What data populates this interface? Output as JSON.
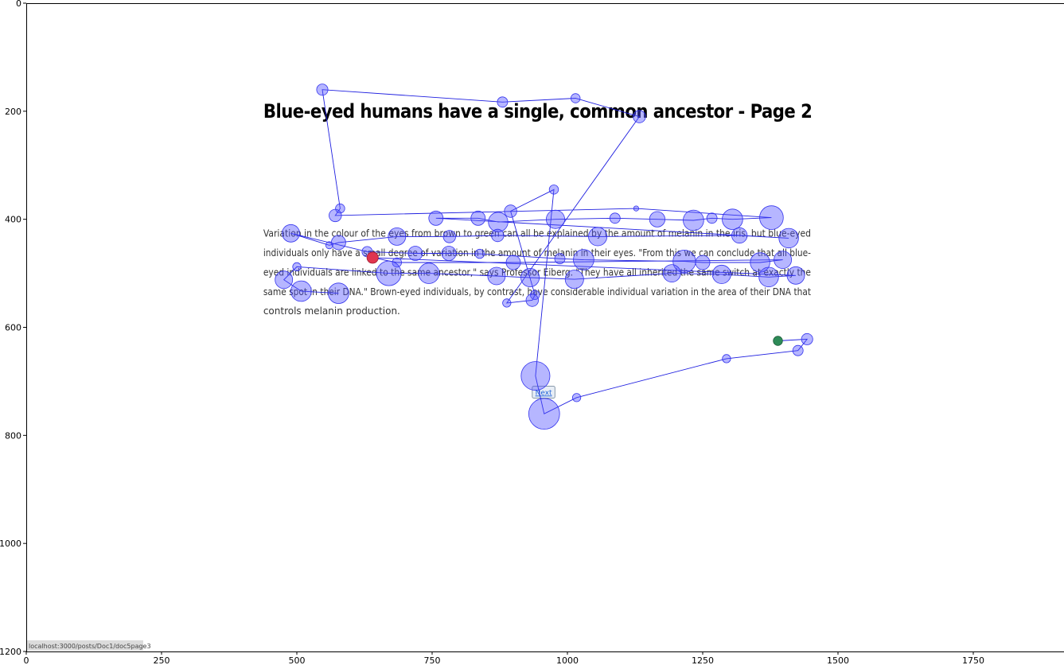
{
  "chart_data": {
    "type": "scatter",
    "title": "",
    "xlabel": "",
    "ylabel": "",
    "xlim": [
      0,
      1900
    ],
    "ylim": [
      1200,
      0
    ],
    "x_ticks": [
      0,
      250,
      500,
      750,
      1000,
      1250,
      1500,
      1750
    ],
    "y_ticks": [
      0,
      200,
      400,
      600,
      800,
      1000,
      1200
    ],
    "x_tick_labels": [
      "0",
      "250",
      "500",
      "750",
      "1000",
      "1250",
      "1500",
      "1750"
    ],
    "y_tick_labels": [
      "0",
      "200",
      "400",
      "600",
      "800",
      "1000",
      "1200"
    ],
    "page": {
      "title": "Blue-eyed humans have a single, common ancestor - Page 2",
      "paragraph_lines": [
        "Variation in the colour of the eyes from brown to green can all be explained by the amount of melanin in the iris, but blue-eyed",
        "individuals only have a small degree of variation in the amount of melanin in their eyes. \"From this we can conclude that all blue-",
        "eyed individuals are linked to the same ancestor,\" says Professor Eiberg. \"They have all inherited the same switch at exactly the",
        "same spot in their DNA.\" Brown-eyed individuals, by contrast, have considerable individual variation in the area of their DNA that",
        "controls melanin production."
      ],
      "next_label": "Next",
      "status_url": "localhost:3000/posts/Doc1/doc5page3"
    },
    "fixation_style": {
      "fixation_color": "#5050ff",
      "start_color": "#2e8b57",
      "end_color": "#e0354f"
    },
    "series": [
      {
        "name": "fixations",
        "points": [
          [
            1389,
            625,
            9
          ],
          [
            1443,
            622,
            11
          ],
          [
            1426,
            643,
            10
          ],
          [
            1294,
            658,
            8
          ],
          [
            1017,
            730,
            8
          ],
          [
            957,
            760,
            30
          ],
          [
            941,
            690,
            28
          ],
          [
            975,
            345,
            9
          ],
          [
            895,
            385,
            12
          ],
          [
            940,
            540,
            9
          ],
          [
            935,
            550,
            12
          ],
          [
            888,
            555,
            8
          ],
          [
            1133,
            210,
            12
          ],
          [
            1015,
            176,
            9
          ],
          [
            880,
            183,
            10
          ],
          [
            547,
            160,
            11
          ],
          [
            580,
            380,
            9
          ],
          [
            571,
            393,
            12
          ],
          [
            1127,
            380,
            5
          ],
          [
            1377,
            397,
            23
          ],
          [
            1305,
            400,
            20
          ],
          [
            1267,
            398,
            10
          ],
          [
            1233,
            402,
            20
          ],
          [
            1166,
            400,
            15
          ],
          [
            1088,
            398,
            10
          ],
          [
            978,
            400,
            18
          ],
          [
            872,
            405,
            19
          ],
          [
            835,
            398,
            14
          ],
          [
            757,
            398,
            14
          ],
          [
            1409,
            435,
            19
          ],
          [
            1318,
            430,
            15
          ],
          [
            1056,
            432,
            18
          ],
          [
            871,
            430,
            12
          ],
          [
            782,
            432,
            12
          ],
          [
            685,
            432,
            17
          ],
          [
            577,
            443,
            14
          ],
          [
            560,
            448,
            7
          ],
          [
            489,
            426,
            17
          ],
          [
            630,
            460,
            10
          ],
          [
            719,
            463,
            14
          ],
          [
            781,
            463,
            14
          ],
          [
            838,
            464,
            9
          ],
          [
            986,
            473,
            10
          ],
          [
            1030,
            475,
            20
          ],
          [
            1216,
            478,
            22
          ],
          [
            1250,
            480,
            14
          ],
          [
            1356,
            480,
            19
          ],
          [
            1398,
            475,
            17
          ],
          [
            900,
            480,
            14
          ],
          [
            685,
            480,
            9
          ],
          [
            640,
            471,
            11
          ],
          [
            1422,
            504,
            17
          ],
          [
            1372,
            507,
            19
          ],
          [
            1285,
            502,
            18
          ],
          [
            1193,
            500,
            17
          ],
          [
            1013,
            511,
            18
          ],
          [
            931,
            508,
            18
          ],
          [
            869,
            505,
            17
          ],
          [
            744,
            500,
            20
          ],
          [
            670,
            500,
            24
          ],
          [
            500,
            488,
            8
          ],
          [
            476,
            512,
            17
          ],
          [
            508,
            533,
            20
          ],
          [
            577,
            537,
            20
          ]
        ],
        "start_index": 0,
        "end_index": 50
      }
    ]
  }
}
